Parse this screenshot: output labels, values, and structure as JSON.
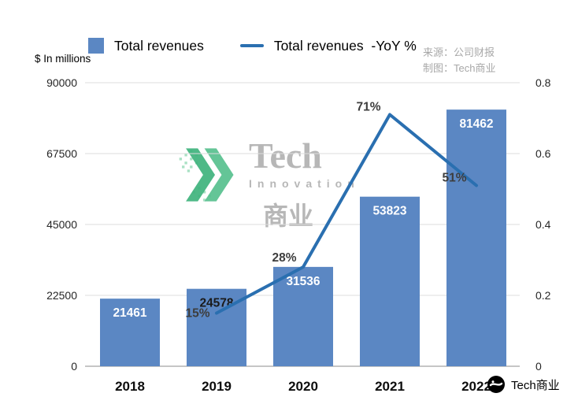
{
  "source": {
    "line1": "来源：公司财报",
    "line2": "制图：Tech商业"
  },
  "watermark": {
    "title": "Tech",
    "subtitle": "Innovation",
    "cjk": "商业",
    "arrow_color": "#3fb37d"
  },
  "footer": {
    "brand": "Tech商业"
  },
  "chart_data": {
    "type": "combo-bar-line",
    "categories": [
      "2018",
      "2019",
      "2020",
      "2021",
      "2022"
    ],
    "series": [
      {
        "name": "Total revenues",
        "type": "bar",
        "axis": "left",
        "color": "#5b87c3",
        "values": [
          21461,
          24578,
          31536,
          53823,
          81462
        ],
        "value_label_colors": [
          "#ffffff",
          "#1a1a1a",
          "#ffffff",
          "#ffffff",
          "#ffffff"
        ]
      },
      {
        "name": "Total revenues  -YoY %",
        "type": "line",
        "axis": "right",
        "color": "#2a6fb0",
        "x": [
          "2019",
          "2020",
          "2021",
          "2022"
        ],
        "values": [
          0.15,
          0.28,
          0.71,
          0.51
        ],
        "point_labels": [
          "15%",
          "28%",
          "71%",
          "51%"
        ]
      }
    ],
    "left_axis": {
      "title": "$ In millions",
      "ticks": [
        "0",
        "22500",
        "45000",
        "67500",
        "90000"
      ],
      "min": 0,
      "max": 90000
    },
    "right_axis": {
      "ticks": [
        "0",
        "0.2",
        "0.4",
        "0.6",
        "0.8"
      ],
      "min": 0,
      "max": 0.8
    },
    "grid": true,
    "legend_position": "top"
  }
}
